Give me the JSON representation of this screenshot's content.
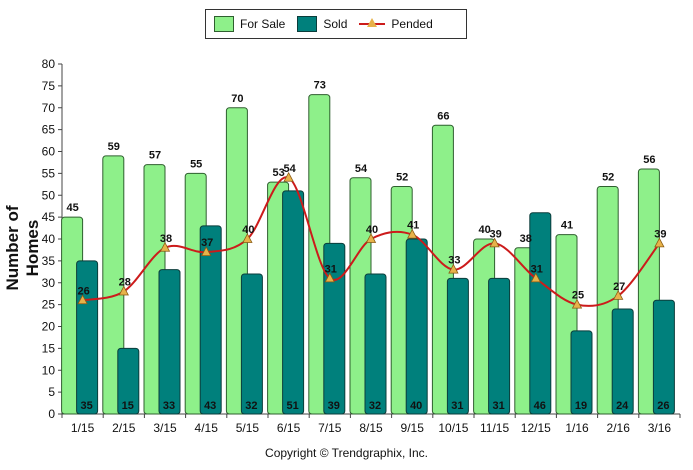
{
  "chart_data": {
    "type": "bar",
    "categories": [
      "1/15",
      "2/15",
      "3/15",
      "4/15",
      "5/15",
      "6/15",
      "7/15",
      "8/15",
      "9/15",
      "10/15",
      "11/15",
      "12/15",
      "1/16",
      "2/16",
      "3/16"
    ],
    "series": [
      {
        "name": "For Sale",
        "type": "bar",
        "color": "#8ef08a",
        "values": [
          45,
          59,
          57,
          55,
          70,
          53,
          73,
          54,
          52,
          66,
          40,
          38,
          41,
          52,
          56
        ]
      },
      {
        "name": "Sold",
        "type": "bar",
        "color": "#00807c",
        "values": [
          35,
          15,
          33,
          43,
          32,
          51,
          39,
          32,
          40,
          31,
          31,
          46,
          19,
          24,
          26
        ]
      },
      {
        "name": "Pended",
        "type": "line",
        "color": "#cc1b1b",
        "marker_color": "#e7b24a",
        "values": [
          26,
          28,
          38,
          37,
          40,
          54,
          31,
          40,
          41,
          33,
          39,
          31,
          25,
          27,
          39
        ]
      }
    ],
    "ylabel": "Number of Homes",
    "xlabel": "",
    "ylim": [
      0,
      80
    ],
    "yticks": [
      0,
      5,
      10,
      15,
      20,
      25,
      30,
      35,
      40,
      45,
      50,
      55,
      60,
      65,
      70,
      75,
      80
    ],
    "grid": false,
    "legend_position": "top-center"
  },
  "legend": {
    "for_sale": "For Sale",
    "sold": "Sold",
    "pended": "Pended"
  },
  "axis": {
    "ylabel": "Number of Homes"
  },
  "footer": {
    "copyright": "Copyright © Trendgraphix, Inc."
  }
}
